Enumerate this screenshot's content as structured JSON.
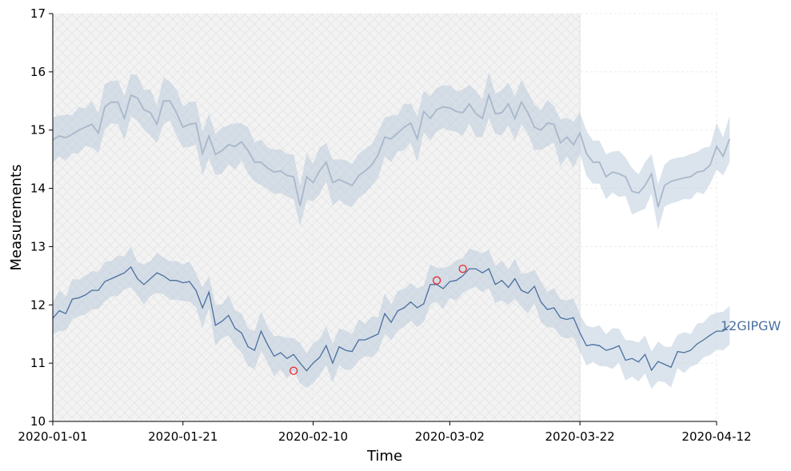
{
  "chart_data": {
    "type": "line",
    "title": "",
    "xlabel": "Time",
    "ylabel": "Measurements",
    "x_start": "2020-01-01",
    "x_end": "2020-04-12",
    "xlim": [
      "2020-01-01",
      "2020-04-12"
    ],
    "ylim": [
      10,
      17
    ],
    "grid": true,
    "x_ticks": [
      "2020-01-01",
      "2020-01-21",
      "2020-02-10",
      "2020-03-02",
      "2020-03-22",
      "2020-04-12"
    ],
    "y_ticks": [
      10,
      11,
      12,
      13,
      14,
      15,
      16,
      17
    ],
    "shaded_region": {
      "start": "2020-01-01",
      "end": "2020-03-22",
      "hatched": true
    },
    "series": [
      {
        "name": "12GIPGW",
        "color": "#4a6fa0",
        "band_color": "#b7c7da",
        "values": [
          11.77,
          11.9,
          11.85,
          12.1,
          12.12,
          12.17,
          12.25,
          12.25,
          12.4,
          12.45,
          12.5,
          12.55,
          12.65,
          12.45,
          12.35,
          12.45,
          12.55,
          12.5,
          12.42,
          12.42,
          12.38,
          12.4,
          12.25,
          11.95,
          12.22,
          11.65,
          11.72,
          11.82,
          11.6,
          11.52,
          11.28,
          11.22,
          11.55,
          11.32,
          11.12,
          11.18,
          11.08,
          11.15,
          11.0,
          10.87,
          11.0,
          11.1,
          11.3,
          11.0,
          11.28,
          11.22,
          11.2,
          11.4,
          11.4,
          11.45,
          11.5,
          11.85,
          11.7,
          11.9,
          11.95,
          12.05,
          11.95,
          12.02,
          12.35,
          12.35,
          12.28,
          12.4,
          12.42,
          12.5,
          12.62,
          12.62,
          12.55,
          12.62,
          12.35,
          12.42,
          12.3,
          12.45,
          12.25,
          12.2,
          12.32,
          12.05,
          11.92,
          11.95,
          11.78,
          11.75,
          11.78,
          11.52,
          11.3,
          11.32,
          11.3,
          11.22,
          11.25,
          11.3,
          11.05,
          11.08,
          11.02,
          11.15,
          10.88,
          11.03,
          10.98,
          10.93,
          11.2,
          11.18,
          11.22,
          11.33,
          11.4,
          11.48,
          11.55,
          11.55,
          11.65
        ],
        "band_halfwidth": 0.35,
        "anomalies": [
          {
            "date": "2020-02-07",
            "value": 10.87
          },
          {
            "date": "2020-02-29",
            "value": 12.42
          },
          {
            "date": "2020-03-04",
            "value": 12.62
          }
        ]
      },
      {
        "name": "",
        "color": "#a9b8cb",
        "band_color": "#b7c7da",
        "values": [
          14.83,
          14.9,
          14.87,
          14.93,
          15.0,
          15.05,
          15.1,
          14.95,
          15.4,
          15.48,
          15.48,
          15.2,
          15.6,
          15.55,
          15.35,
          15.3,
          15.1,
          15.5,
          15.5,
          15.3,
          15.05,
          15.1,
          15.12,
          14.6,
          14.9,
          14.58,
          14.65,
          14.75,
          14.72,
          14.8,
          14.65,
          14.45,
          14.45,
          14.35,
          14.28,
          14.3,
          14.22,
          14.2,
          13.7,
          14.2,
          14.1,
          14.3,
          14.45,
          14.1,
          14.15,
          14.1,
          14.05,
          14.22,
          14.3,
          14.4,
          14.58,
          14.88,
          14.85,
          14.95,
          15.05,
          15.12,
          14.85,
          15.32,
          15.2,
          15.35,
          15.4,
          15.38,
          15.32,
          15.3,
          15.45,
          15.28,
          15.2,
          15.6,
          15.28,
          15.3,
          15.45,
          15.2,
          15.48,
          15.3,
          15.05,
          15.0,
          15.12,
          15.1,
          14.78,
          14.88,
          14.75,
          14.95,
          14.6,
          14.45,
          14.45,
          14.2,
          14.28,
          14.25,
          14.2,
          13.95,
          13.92,
          14.05,
          14.25,
          13.68,
          14.05,
          14.12,
          14.15,
          14.18,
          14.2,
          14.28,
          14.3,
          14.4,
          14.72,
          14.55,
          14.85
        ],
        "band_halfwidth": 0.4
      }
    ]
  }
}
